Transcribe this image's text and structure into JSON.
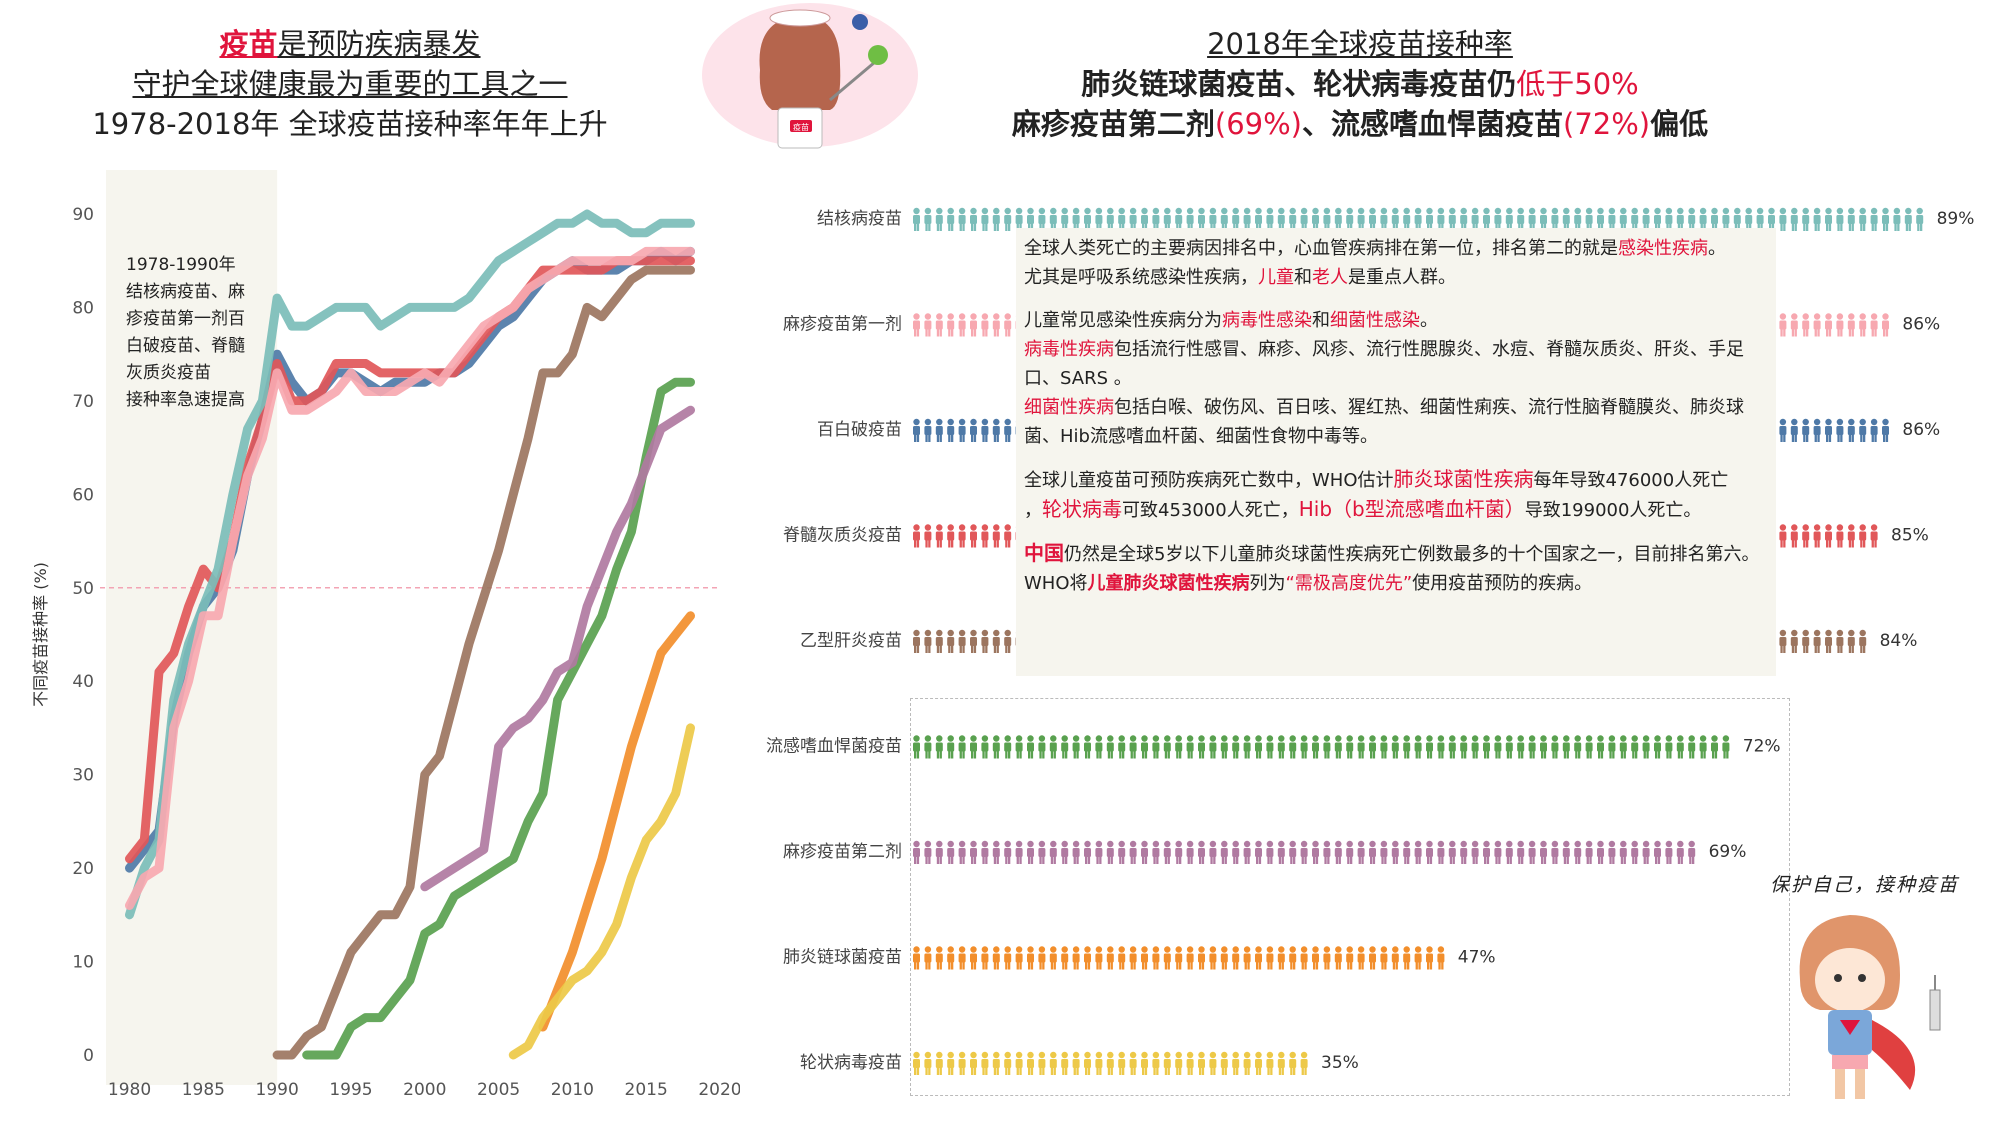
{
  "left_title": {
    "line1_highlight": "疫苗",
    "line1_rest": "是预防疾病暴发",
    "line2": "守护全球健康最为重要的工具之一",
    "line3": "1978-2018年 全球疫苗接种率年年上升"
  },
  "right_title": {
    "line1": "2018年全球疫苗接种率",
    "line2_a": "肺炎链球菌疫苗、轮状病毒疫苗仍",
    "line2_b": "低于50%",
    "line3_a": "麻疹疫苗第二剂",
    "line3_b": "(69%)",
    "line3_c": "、流感嗜血悍菌疫苗",
    "line3_d": "(72%)",
    "line3_e": "偏低"
  },
  "info_box": {
    "p1_a": "全球人类死亡的主要病因排名中，心血管疾病排在第一位，排名第二的就是",
    "p1_b": "感染性疾病",
    "p1_c": "。",
    "p1_d": "尤其是呼吸系统感染性疾病，",
    "p1_e": "儿童",
    "p1_f": "和",
    "p1_g": "老人",
    "p1_h": "是重点人群。",
    "p2_a": "儿童常见感染性疾病分为",
    "p2_b": "病毒性感染",
    "p2_c": "和",
    "p2_d": "细菌性感染",
    "p2_e": "。",
    "p2_f": "病毒性疾病",
    "p2_g": "包括流行性感冒、麻疹、风疹、流行性腮腺炎、水痘、脊髓灰质炎、肝炎、手足口、SARS 。",
    "p2_h": "细菌性疾病",
    "p2_i": "包括白喉、破伤风、百日咳、猩红热、细菌性痢疾、流行性脑脊髓膜炎、肺炎球菌、Hib流感嗜血杆菌、细菌性食物中毒等。",
    "p3_a": "全球儿童疫苗可预防疾病死亡数中，WHO估计",
    "p3_b": "肺炎球菌性疾病",
    "p3_c": "每年导致476000人死亡",
    "p3_d": "，",
    "p3_e": "轮状病毒",
    "p3_f": "可致453000人死亡，",
    "p3_g": "Hib（b型流感嗜血杆菌）",
    "p3_h": "导致199000人死亡。",
    "p4_a": "中国",
    "p4_b": "仍然是全球5岁以下儿童肺炎球菌性疾病死亡例数最多的十个国家之一，目前排名第六。WHO将",
    "p4_c": "儿童肺炎球菌性疾病",
    "p4_d": "列为",
    "p4_e": "“需极高度优先”",
    "p4_f": "使用疫苗预防的疾病。"
  },
  "annotation": {
    "lines": [
      "1978-1990年",
      "结核病疫苗、麻",
      "疹疫苗第一剂百",
      "白破疫苗、脊髓",
      "灰质炎疫苗",
      "接种率急速提高"
    ]
  },
  "girl_caption": "保护自己，接种疫苗",
  "nurse_badge": "疫苗",
  "colors": {
    "tb": "#7bbdb9",
    "measles1": "#f7a8b0",
    "dtp": "#4e79a7",
    "polio": "#e15759",
    "hepb": "#9c755f",
    "hib": "#59a14f",
    "measles2": "#b07aa1",
    "pneumo": "#f28e2b",
    "rota": "#edc948",
    "highlight_red": "#e0143c",
    "shade": "#f6f5ee"
  },
  "chart_data": [
    {
      "type": "line",
      "ylabel": "不同疫苗接种率 (%)",
      "xlabel": "",
      "xlim": [
        1978,
        2020
      ],
      "ylim": [
        0,
        90
      ],
      "x_ticks": [
        1980,
        1985,
        1990,
        1995,
        2000,
        2005,
        2010,
        2015,
        2020
      ],
      "y_ticks": [
        0,
        10,
        20,
        30,
        40,
        50,
        60,
        70,
        80,
        90
      ],
      "reference_line": 50,
      "shaded_range": [
        1978,
        1990
      ],
      "series": [
        {
          "key": "dtp",
          "x": [
            1980,
            1981,
            1982,
            1983,
            1984,
            1985,
            1986,
            1987,
            1988,
            1989,
            1990,
            1991,
            1992,
            1993,
            1994,
            1995,
            1996,
            1997,
            1998,
            1999,
            2000,
            2001,
            2002,
            2003,
            2004,
            2005,
            2006,
            2007,
            2008,
            2009,
            2010,
            2011,
            2012,
            2013,
            2014,
            2015,
            2016,
            2017,
            2018
          ],
          "y": [
            20,
            22,
            24,
            36,
            43,
            48,
            50,
            54,
            62,
            68,
            75,
            72,
            70,
            71,
            73,
            73,
            72,
            71,
            72,
            72,
            72,
            73,
            73,
            74,
            76,
            78,
            79,
            81,
            83,
            84,
            85,
            84,
            84,
            84,
            85,
            85,
            86,
            85,
            86
          ]
        },
        {
          "key": "polio",
          "x": [
            1980,
            1981,
            1982,
            1983,
            1984,
            1985,
            1986,
            1987,
            1988,
            1989,
            1990,
            1991,
            1992,
            1993,
            1994,
            1995,
            1996,
            1997,
            1998,
            1999,
            2000,
            2001,
            2002,
            2003,
            2004,
            2005,
            2006,
            2007,
            2008,
            2009,
            2010,
            2011,
            2012,
            2013,
            2014,
            2015,
            2016,
            2017,
            2018
          ],
          "y": [
            21,
            23,
            41,
            43,
            48,
            52,
            50,
            55,
            63,
            68,
            74,
            70,
            70,
            71,
            74,
            74,
            74,
            73,
            73,
            73,
            73,
            73,
            73,
            75,
            77,
            79,
            80,
            82,
            84,
            84,
            84,
            84,
            84,
            85,
            85,
            85,
            85,
            85,
            85
          ]
        },
        {
          "key": "tb",
          "x": [
            1980,
            1981,
            1982,
            1983,
            1984,
            1985,
            1986,
            1987,
            1988,
            1989,
            1990,
            1991,
            1992,
            1993,
            1994,
            1995,
            1996,
            1997,
            1998,
            1999,
            2000,
            2001,
            2002,
            2003,
            2004,
            2005,
            2006,
            2007,
            2008,
            2009,
            2010,
            2011,
            2012,
            2013,
            2014,
            2015,
            2016,
            2017,
            2018
          ],
          "y": [
            15,
            20,
            23,
            38,
            44,
            48,
            52,
            60,
            67,
            70,
            81,
            78,
            78,
            79,
            80,
            80,
            80,
            78,
            79,
            80,
            80,
            80,
            80,
            81,
            83,
            85,
            86,
            87,
            88,
            89,
            89,
            90,
            89,
            89,
            88,
            88,
            89,
            89,
            89
          ]
        },
        {
          "key": "measles1",
          "x": [
            1980,
            1981,
            1982,
            1983,
            1984,
            1985,
            1986,
            1987,
            1988,
            1989,
            1990,
            1991,
            1992,
            1993,
            1994,
            1995,
            1996,
            1997,
            1998,
            1999,
            2000,
            2001,
            2002,
            2003,
            2004,
            2005,
            2006,
            2007,
            2008,
            2009,
            2010,
            2011,
            2012,
            2013,
            2014,
            2015,
            2016,
            2017,
            2018
          ],
          "y": [
            16,
            19,
            20,
            35,
            40,
            47,
            47,
            55,
            62,
            66,
            73,
            69,
            69,
            70,
            71,
            73,
            71,
            71,
            71,
            72,
            73,
            72,
            74,
            76,
            78,
            79,
            80,
            82,
            83,
            84,
            85,
            85,
            85,
            85,
            85,
            86,
            86,
            86,
            86
          ]
        },
        {
          "key": "hepb",
          "x": [
            1990,
            1991,
            1992,
            1993,
            1994,
            1995,
            1996,
            1997,
            1998,
            1999,
            2000,
            2001,
            2002,
            2003,
            2004,
            2005,
            2006,
            2007,
            2008,
            2009,
            2010,
            2011,
            2012,
            2013,
            2014,
            2015,
            2016,
            2017,
            2018
          ],
          "y": [
            0,
            0,
            2,
            3,
            7,
            11,
            13,
            15,
            15,
            18,
            30,
            32,
            38,
            44,
            49,
            54,
            60,
            66,
            73,
            73,
            75,
            80,
            79,
            81,
            83,
            84,
            84,
            84,
            84
          ]
        },
        {
          "key": "hib",
          "x": [
            1992,
            1993,
            1994,
            1995,
            1996,
            1997,
            1998,
            1999,
            2000,
            2001,
            2002,
            2003,
            2004,
            2005,
            2006,
            2007,
            2008,
            2009,
            2010,
            2011,
            2012,
            2013,
            2014,
            2015,
            2016,
            2017,
            2018
          ],
          "y": [
            0,
            0,
            0,
            3,
            4,
            4,
            6,
            8,
            13,
            14,
            17,
            18,
            19,
            20,
            21,
            25,
            28,
            38,
            41,
            44,
            47,
            52,
            56,
            64,
            71,
            72,
            72
          ]
        },
        {
          "key": "measles2",
          "x": [
            2000,
            2001,
            2002,
            2003,
            2004,
            2005,
            2006,
            2007,
            2008,
            2009,
            2010,
            2011,
            2012,
            2013,
            2014,
            2015,
            2016,
            2017,
            2018
          ],
          "y": [
            18,
            19,
            20,
            21,
            22,
            33,
            35,
            36,
            38,
            41,
            42,
            48,
            52,
            56,
            59,
            63,
            67,
            68,
            69
          ]
        },
        {
          "key": "pneumo",
          "x": [
            2008,
            2009,
            2010,
            2011,
            2012,
            2013,
            2014,
            2015,
            2016,
            2017,
            2018
          ],
          "y": [
            3,
            7,
            11,
            16,
            21,
            27,
            33,
            38,
            43,
            45,
            47
          ]
        },
        {
          "key": "rota",
          "x": [
            2006,
            2007,
            2008,
            2009,
            2010,
            2011,
            2012,
            2013,
            2014,
            2015,
            2016,
            2017,
            2018
          ],
          "y": [
            0,
            1,
            4,
            6,
            8,
            9,
            11,
            14,
            19,
            23,
            25,
            28,
            35
          ]
        }
      ]
    },
    {
      "type": "bar",
      "title": "2018年全球疫苗接种率",
      "categories": [
        "结核病疫苗",
        "麻疹疫苗第一剂",
        "百白破疫苗",
        "脊髓灰质炎疫苗",
        "乙型肝炎疫苗",
        "流感嗜血悍菌疫苗",
        "麻疹疫苗第二剂",
        "肺炎链球菌疫苗",
        "轮状病毒疫苗"
      ],
      "keys": [
        "tb",
        "measles1",
        "dtp",
        "polio",
        "hepb",
        "hib",
        "measles2",
        "pneumo",
        "rota"
      ],
      "values": [
        89,
        86,
        86,
        85,
        84,
        72,
        69,
        47,
        35
      ],
      "value_labels": [
        "89%",
        "86%",
        "86%",
        "85%",
        "84%",
        "72%",
        "69%",
        "47%",
        "35%"
      ]
    }
  ]
}
